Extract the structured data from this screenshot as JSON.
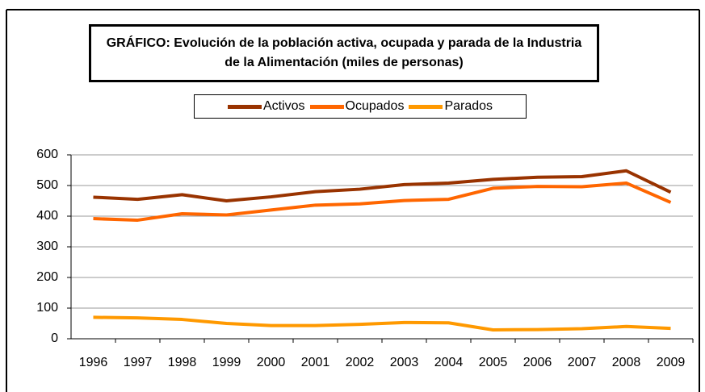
{
  "chart_data": {
    "type": "line",
    "title": "GRÁFICO: Evolución de la población activa, ocupada y parada de la Industria de la Alimentación (miles de personas)",
    "categories": [
      "1996",
      "1997",
      "1998",
      "1999",
      "2000",
      "2001",
      "2002",
      "2003",
      "2004",
      "2005",
      "2006",
      "2007",
      "2008",
      "2009"
    ],
    "series": [
      {
        "name": "Activos",
        "color": "#993300",
        "values": [
          462,
          455,
          470,
          450,
          463,
          480,
          488,
          503,
          508,
          520,
          527,
          529,
          548,
          478
        ]
      },
      {
        "name": "Ocupados",
        "color": "#ff6600",
        "values": [
          392,
          387,
          408,
          404,
          420,
          436,
          440,
          451,
          455,
          491,
          497,
          496,
          508,
          445
        ]
      },
      {
        "name": "Parados",
        "color": "#ff9900",
        "values": [
          70,
          68,
          63,
          50,
          43,
          43,
          47,
          53,
          52,
          29,
          30,
          33,
          40,
          34
        ]
      }
    ],
    "ylim": [
      0,
      600
    ],
    "yticks": [
      0,
      100,
      200,
      300,
      400,
      500,
      600
    ],
    "grid": true,
    "legend": "top"
  }
}
